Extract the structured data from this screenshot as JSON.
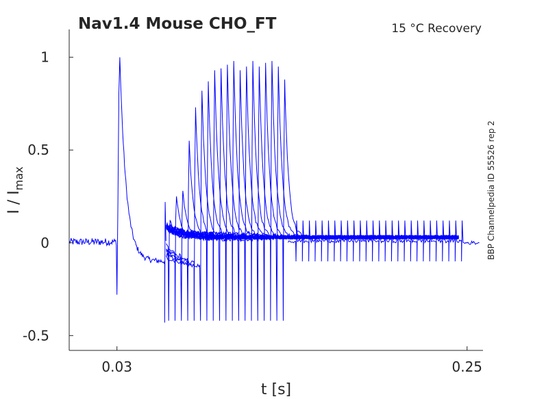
{
  "chart_data": {
    "type": "line",
    "title": "Nav1.4  Mouse  CHO_FT",
    "subtitle": "15 °C  Recovery",
    "side_label": "BBP Channelpedia ID 55526 rep 2",
    "xlabel": "t [s]",
    "ylabel": "I / I",
    "ylabel_sub": "max",
    "xlim": [
      0.0,
      0.26
    ],
    "ylim": [
      -0.58,
      1.15
    ],
    "x_ticks": [
      0.03,
      0.25
    ],
    "x_tick_labels": [
      "0.03",
      "0.25"
    ],
    "y_ticks": [
      1,
      0.5,
      0,
      -0.5
    ],
    "y_tick_labels": [
      "1",
      "0.5",
      "0",
      "-0.5"
    ],
    "grid": false,
    "series_color": "#0000ff",
    "conditioning_pulse": {
      "t": 0.03,
      "peak": 1.0,
      "pre_spike": -0.28,
      "settle_level": -0.1,
      "end": 0.06
    },
    "end_transient": {
      "t": 0.06,
      "up": 0.22,
      "down": -0.43
    },
    "recovery_sweeps": [
      {
        "t": 0.0625,
        "peak": 0.12
      },
      {
        "t": 0.0665,
        "peak": 0.25
      },
      {
        "t": 0.0705,
        "peak": 0.28
      },
      {
        "t": 0.0745,
        "peak": 0.55
      },
      {
        "t": 0.0785,
        "peak": 0.73
      },
      {
        "t": 0.0825,
        "peak": 0.82
      },
      {
        "t": 0.0865,
        "peak": 0.87
      },
      {
        "t": 0.0905,
        "peak": 0.93
      },
      {
        "t": 0.0945,
        "peak": 0.94
      },
      {
        "t": 0.0985,
        "peak": 0.96
      },
      {
        "t": 0.1025,
        "peak": 0.98
      },
      {
        "t": 0.1065,
        "peak": 0.93
      },
      {
        "t": 0.1105,
        "peak": 0.95
      },
      {
        "t": 0.1145,
        "peak": 0.98
      },
      {
        "t": 0.1185,
        "peak": 0.95
      },
      {
        "t": 0.1225,
        "peak": 0.97
      },
      {
        "t": 0.1265,
        "peak": 0.98
      },
      {
        "t": 0.1305,
        "peak": 0.95
      },
      {
        "t": 0.1345,
        "peak": 0.88
      }
    ],
    "tail_transients": [
      0.1425,
      0.1465,
      0.1505,
      0.1545,
      0.1585,
      0.1625,
      0.1665,
      0.1705,
      0.1745,
      0.1785,
      0.1825,
      0.1865,
      0.1905,
      0.1945,
      0.1985,
      0.2025,
      0.2065,
      0.2105,
      0.2145,
      0.2185,
      0.2225,
      0.2265,
      0.2305,
      0.2345,
      0.2385,
      0.2425,
      0.2465
    ]
  }
}
